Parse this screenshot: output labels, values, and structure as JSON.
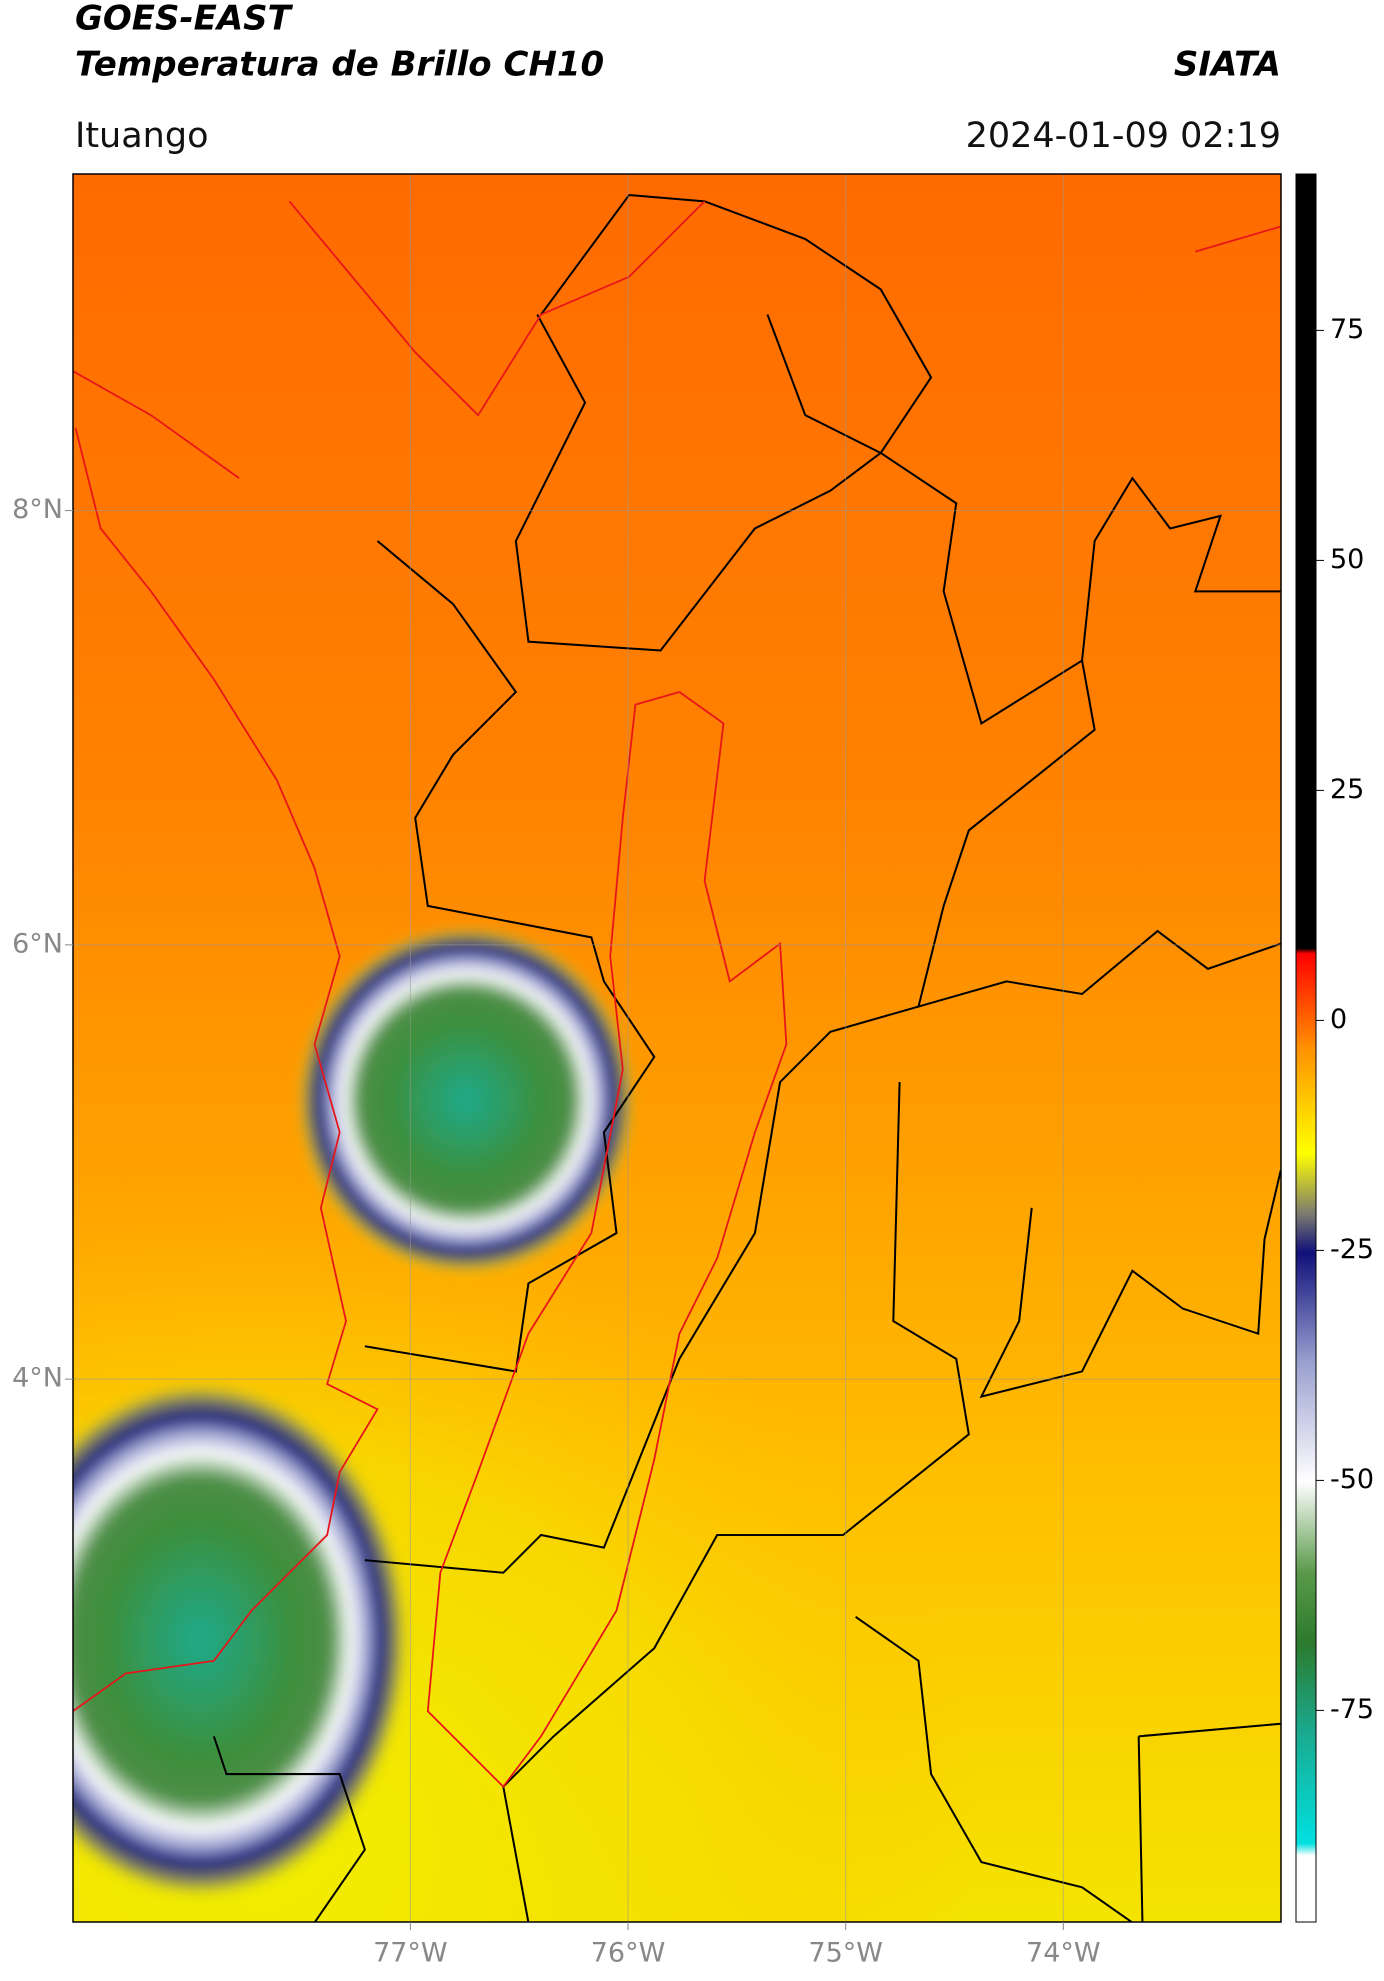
{
  "header": {
    "title": "GOES-EAST",
    "subtitle": "Temperatura de Brillo CH10",
    "brand": "SIATA",
    "location": "Ituango",
    "datetime": "2024-01-09 02:19"
  },
  "map": {
    "xlim": [
      -78.55,
      -73.0
    ],
    "ylim": [
      1.5,
      9.55
    ],
    "xticks": [
      {
        "value": -77,
        "label": "77°W"
      },
      {
        "value": -76,
        "label": "76°W"
      },
      {
        "value": -75,
        "label": "75°W"
      },
      {
        "value": -74,
        "label": "74°W"
      }
    ],
    "yticks": [
      {
        "value": 8,
        "label": "8°N"
      },
      {
        "value": 6,
        "label": "6°N"
      },
      {
        "value": 4,
        "label": "4°N"
      }
    ],
    "grid": true
  },
  "colorbar": {
    "lim": [
      -98,
      92
    ],
    "ticks": [
      75,
      50,
      25,
      0,
      -25,
      -50,
      -75
    ]
  }
}
